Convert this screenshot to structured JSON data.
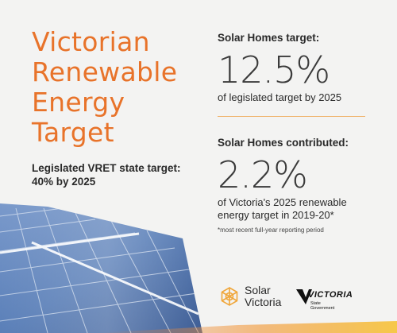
{
  "title": {
    "lines": [
      "Victorian",
      "Renewable",
      "Energy",
      "Target"
    ]
  },
  "vret": {
    "lines": [
      "Legislated VRET state target:",
      "40% by 2025"
    ]
  },
  "stat1": {
    "label": "Solar Homes target:",
    "value": "12.5%",
    "desc_lines": [
      "of legislated target by 2025"
    ]
  },
  "stat2": {
    "label": "Solar Homes contributed:",
    "value": "2.2%",
    "desc_lines": [
      "of Victoria's 2025 renewable",
      "energy target in 2019-20*"
    ],
    "note": "*most recent full-year reporting period"
  },
  "logos": {
    "solar_victoria": [
      "Solar",
      "Victoria"
    ],
    "victoria_word": "VICTORIA",
    "victoria_sub": [
      "State",
      "Government"
    ]
  },
  "colors": {
    "accent": "#e8732a",
    "divider": "#f0b36c",
    "text": "#2a2a2a",
    "panel_blue": "#5a7fb8",
    "background": "#f3f3f2"
  },
  "icons": [
    "solar-victoria-logo-icon",
    "victoria-state-government-logo-icon",
    "solar-panel-image"
  ]
}
